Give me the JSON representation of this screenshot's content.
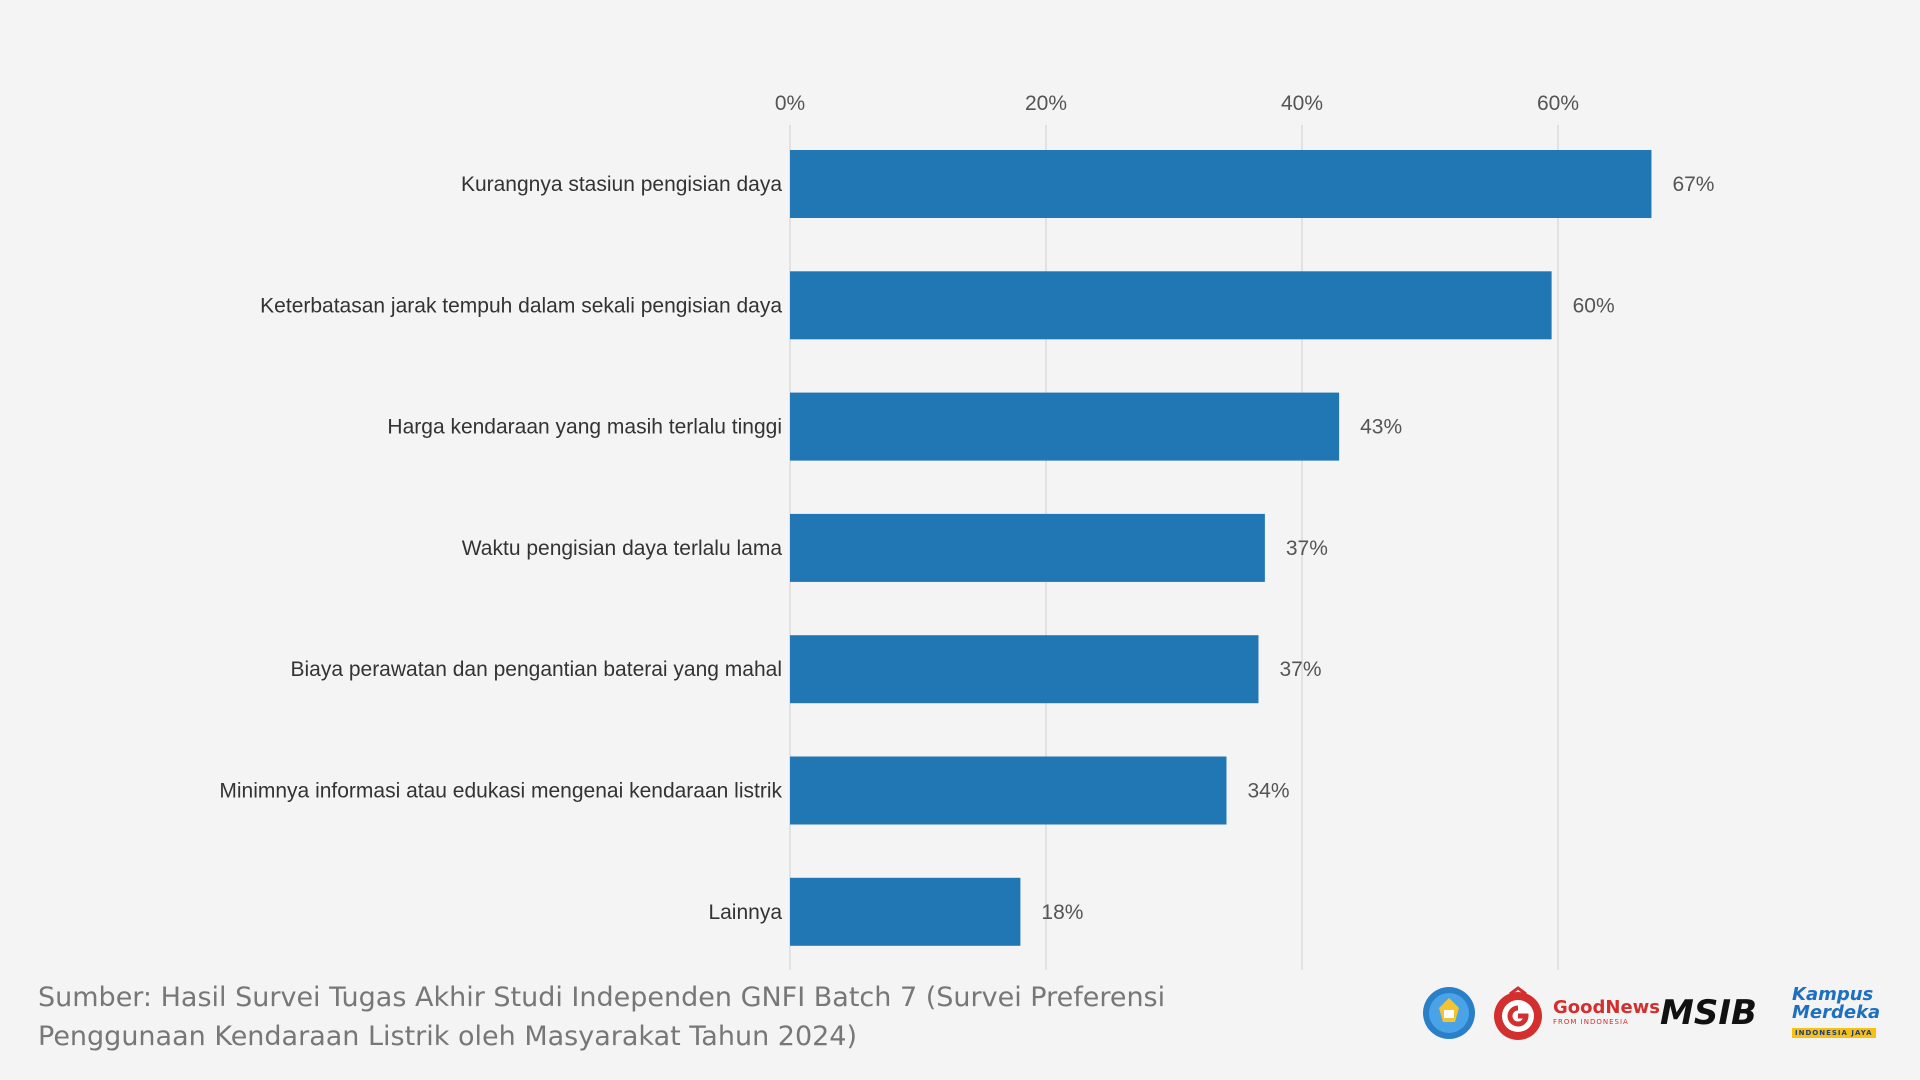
{
  "chart_data": {
    "type": "bar",
    "orientation": "horizontal",
    "categories": [
      "Kurangnya stasiun pengisian daya",
      "Keterbatasan jarak tempuh dalam sekali pengisian daya",
      "Harga kendaraan yang masih terlalu tinggi",
      "Waktu pengisian daya terlalu lama",
      "Biaya perawatan dan pengantian baterai yang mahal",
      "Minimnya informasi atau edukasi mengenai kendaraan listrik",
      "Lainnya"
    ],
    "values": [
      67.3,
      59.5,
      42.9,
      37.1,
      36.6,
      34.1,
      18.0
    ],
    "value_labels": [
      "67%",
      "60%",
      "43%",
      "37%",
      "37%",
      "34%",
      "18%"
    ],
    "xlim": [
      0,
      70
    ],
    "xticks": [
      0,
      20,
      40,
      60
    ],
    "xtick_labels": [
      "0%",
      "20%",
      "40%",
      "60%"
    ],
    "axis_position": "top",
    "grid": true,
    "bar_color": "#2077b4",
    "title": "",
    "xlabel": "",
    "ylabel": ""
  },
  "footer": {
    "source_line1": "Sumber: Hasil Survei Tugas Akhir Studi Independen GNFI Batch 7 (Survei Preferensi",
    "source_line2": "Penggunaan Kendaraan Listrik oleh Masyarakat Tahun 2024)"
  },
  "logos": {
    "icons": [
      "kemdikbud-emblem",
      "gnfi-g-logo"
    ],
    "goodnews_main": "GoodNews",
    "goodnews_sub": "FROM INDONESIA",
    "msib": "MSIB",
    "km_line1": "Kampus",
    "km_line2": "Merdeka",
    "km_badge": "INDONESIA JAYA",
    "brand_red": "#d32f2f",
    "km_blue": "#1e6fc0",
    "km_yellow": "#f6c20f"
  }
}
